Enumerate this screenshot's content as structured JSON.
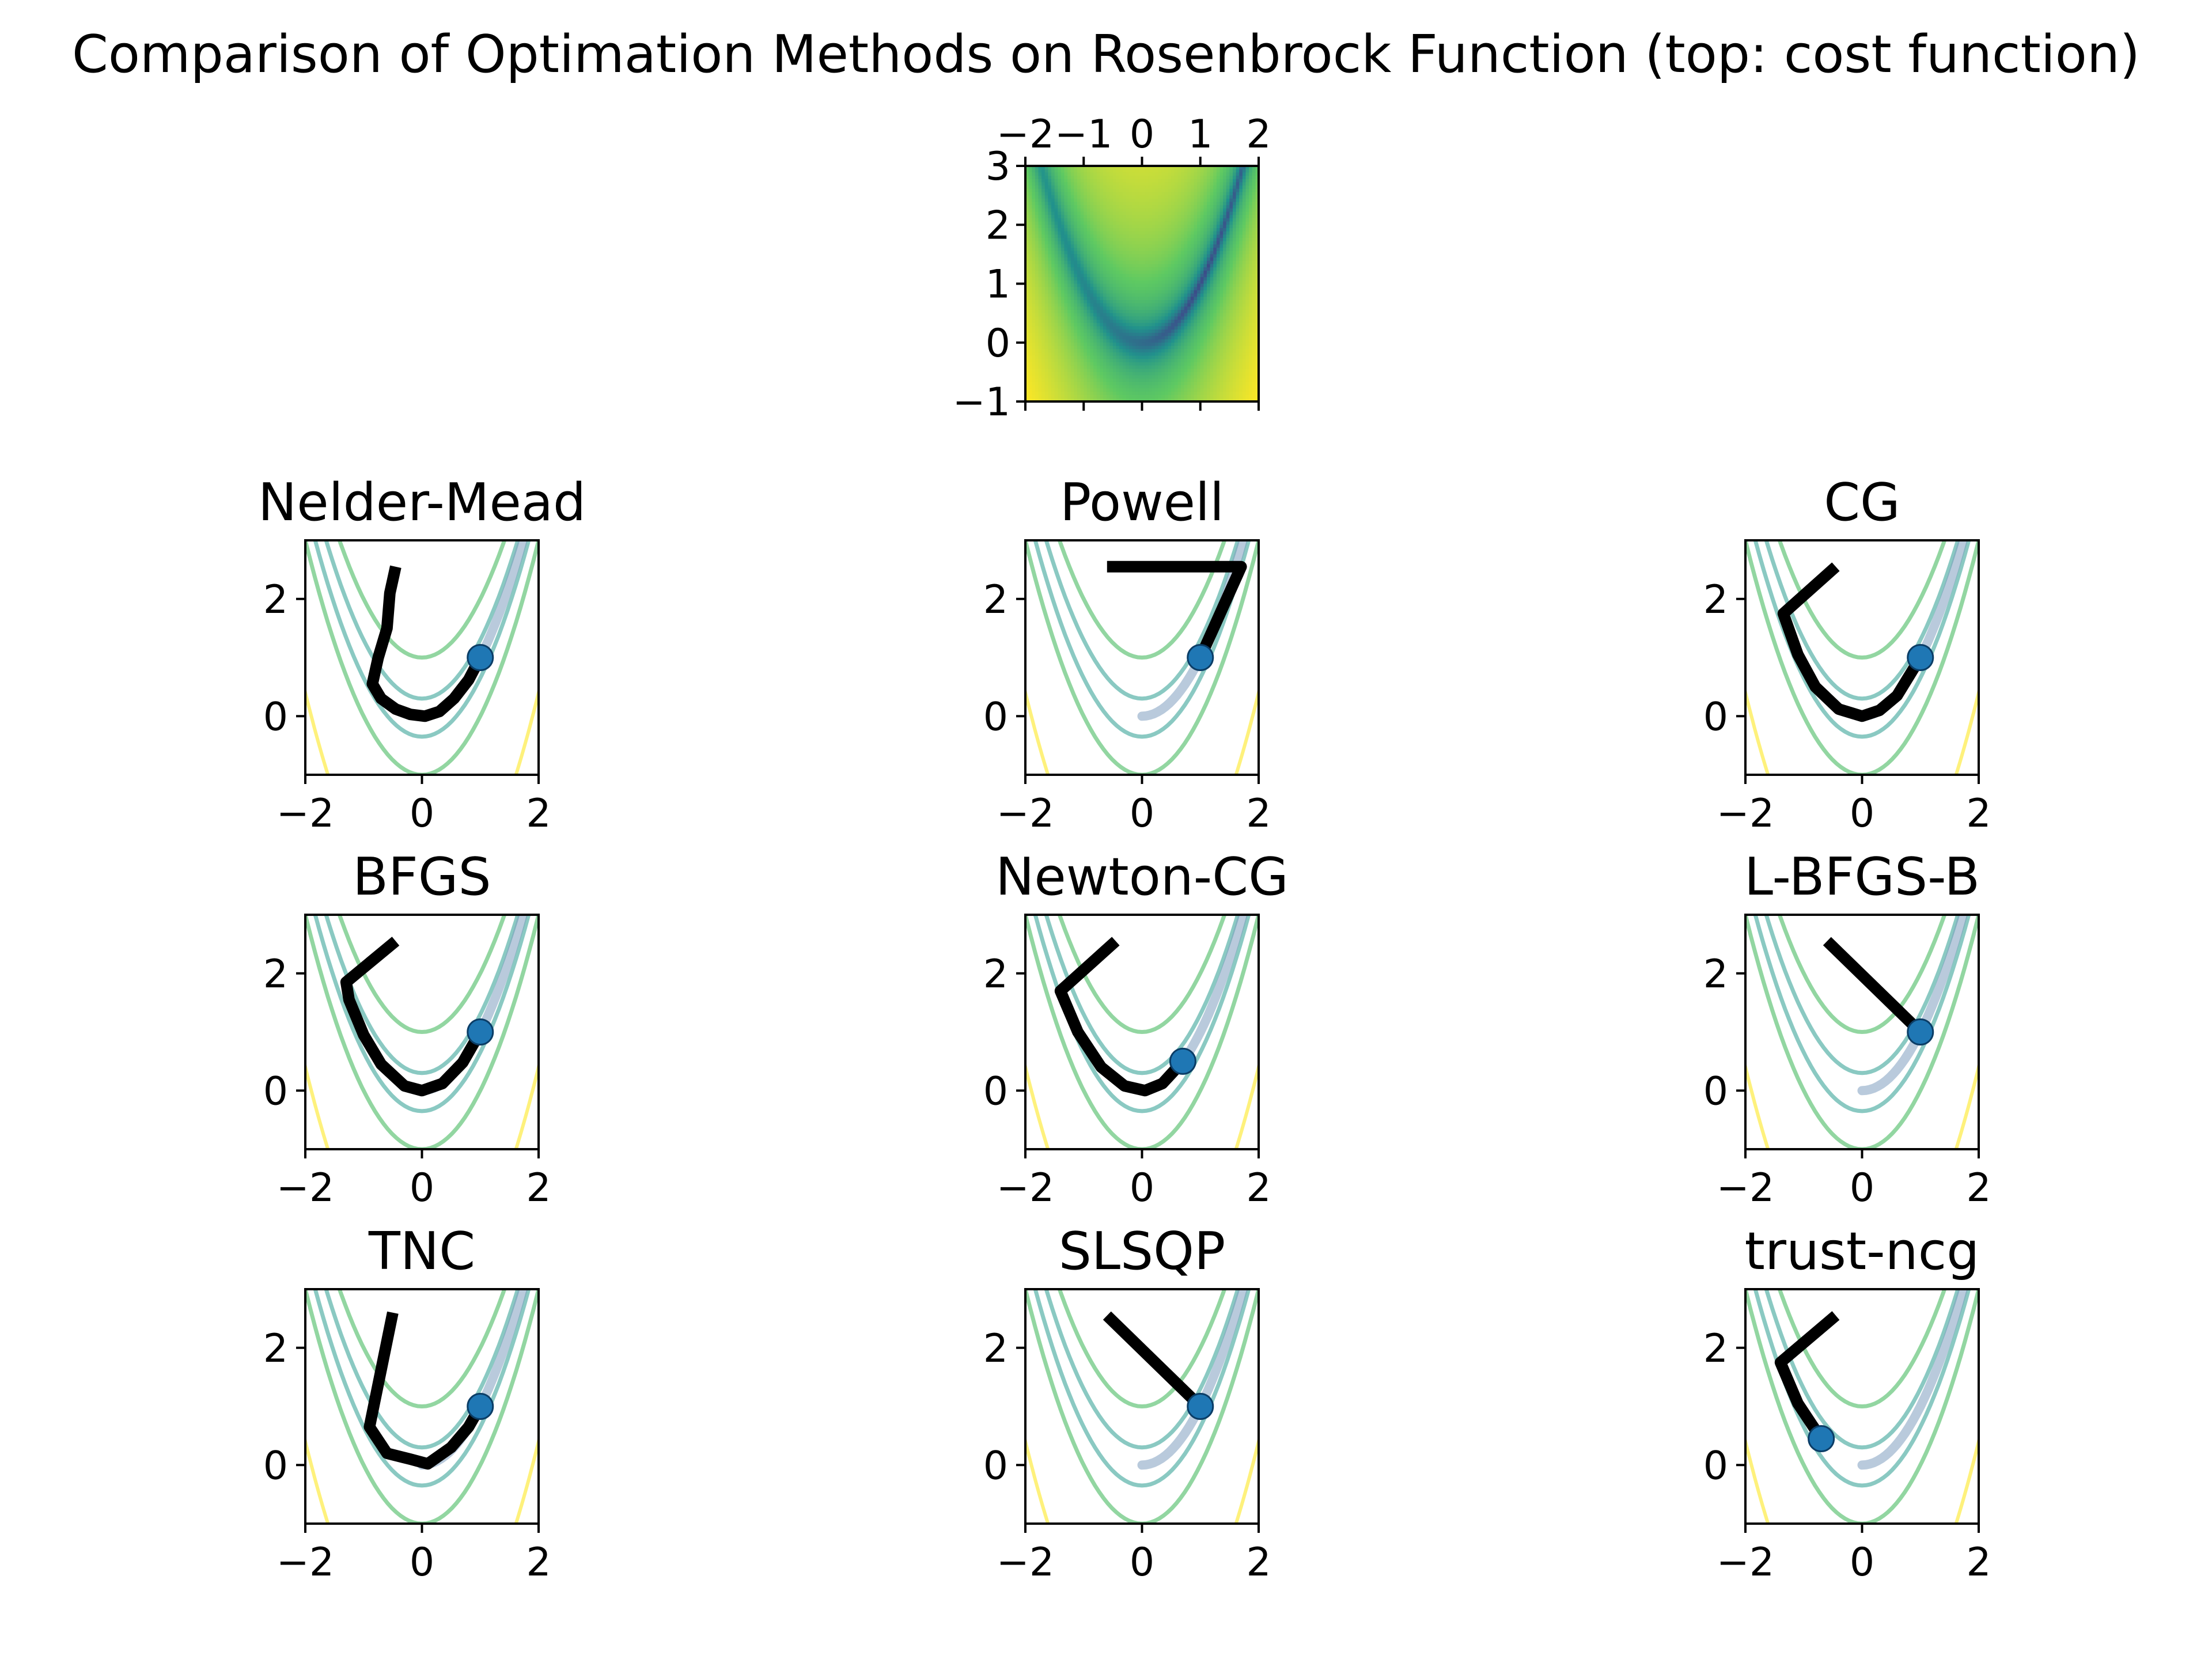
{
  "chart_data": {
    "type": "contour-grid",
    "title": "Comparison of Optimation Methods on Rosenbrock Function (top: cost function)",
    "function": "rosenbrock",
    "colors": {
      "path": "#000000",
      "endpoint": "#1f77b4",
      "valley_trace": "#7f9fbf",
      "contour_levels": [
        "#2a9d8f",
        "#7fcf90",
        "#fde725"
      ]
    },
    "overview": {
      "kind": "heatmap",
      "colormap": "viridis",
      "xlim": [
        -2,
        2
      ],
      "ylim": [
        -1,
        3
      ],
      "xticks": [
        "−2",
        "−1",
        "0",
        "1",
        "2"
      ],
      "yticks": [
        "3",
        "2",
        "1",
        "0",
        "−1"
      ]
    },
    "panels": [
      {
        "title": "Nelder-Mead",
        "xticks": [
          "−2",
          "0",
          "2"
        ],
        "yticks": [
          "2",
          "0"
        ],
        "xlim": [
          -2,
          2
        ],
        "ylim": [
          -1,
          3
        ],
        "path": [
          [
            -0.45,
            2.55
          ],
          [
            -0.55,
            2.1
          ],
          [
            -0.6,
            1.5
          ],
          [
            -0.75,
            1.0
          ],
          [
            -0.85,
            0.55
          ],
          [
            -0.7,
            0.3
          ],
          [
            -0.45,
            0.12
          ],
          [
            -0.2,
            0.03
          ],
          [
            0.05,
            0.0
          ],
          [
            0.3,
            0.08
          ],
          [
            0.55,
            0.3
          ],
          [
            0.8,
            0.62
          ],
          [
            1.0,
            1.0
          ]
        ],
        "endpoint": [
          1.0,
          1.0
        ]
      },
      {
        "title": "Powell",
        "xticks": [
          "−2",
          "0",
          "2"
        ],
        "yticks": [
          "2",
          "0"
        ],
        "xlim": [
          -2,
          2
        ],
        "ylim": [
          -1,
          3
        ],
        "path": [
          [
            -0.6,
            2.55
          ],
          [
            1.7,
            2.55
          ],
          [
            1.0,
            1.0
          ]
        ],
        "endpoint": [
          1.0,
          1.0
        ]
      },
      {
        "title": "CG",
        "xticks": [
          "−2",
          "0",
          "2"
        ],
        "yticks": [
          "2",
          "0"
        ],
        "xlim": [
          -2,
          2
        ],
        "ylim": [
          -1,
          3
        ],
        "path": [
          [
            -0.45,
            2.55
          ],
          [
            -1.35,
            1.75
          ],
          [
            -1.1,
            1.05
          ],
          [
            -0.8,
            0.5
          ],
          [
            -0.4,
            0.12
          ],
          [
            0.0,
            0.0
          ],
          [
            0.3,
            0.1
          ],
          [
            0.6,
            0.35
          ],
          [
            1.0,
            1.0
          ]
        ],
        "endpoint": [
          1.0,
          1.0
        ]
      },
      {
        "title": "BFGS",
        "xticks": [
          "−2",
          "0",
          "2"
        ],
        "yticks": [
          "2",
          "0"
        ],
        "xlim": [
          -2,
          2
        ],
        "ylim": [
          -1,
          3
        ],
        "path": [
          [
            -0.45,
            2.55
          ],
          [
            -1.3,
            1.85
          ],
          [
            -1.25,
            1.55
          ],
          [
            -1.0,
            0.95
          ],
          [
            -0.7,
            0.45
          ],
          [
            -0.3,
            0.08
          ],
          [
            0.0,
            0.0
          ],
          [
            0.35,
            0.12
          ],
          [
            0.7,
            0.48
          ],
          [
            1.0,
            1.0
          ]
        ],
        "endpoint": [
          1.0,
          1.0
        ]
      },
      {
        "title": "Newton-CG",
        "xticks": [
          "−2",
          "0",
          "2"
        ],
        "yticks": [
          "2",
          "0"
        ],
        "xlim": [
          -2,
          2
        ],
        "ylim": [
          -1,
          3
        ],
        "path": [
          [
            -0.45,
            2.55
          ],
          [
            -1.4,
            1.7
          ],
          [
            -1.1,
            1.0
          ],
          [
            -0.7,
            0.4
          ],
          [
            -0.3,
            0.08
          ],
          [
            0.05,
            0.0
          ],
          [
            0.35,
            0.12
          ],
          [
            0.7,
            0.5
          ]
        ],
        "endpoint": [
          0.7,
          0.5
        ]
      },
      {
        "title": "L-BFGS-B",
        "xticks": [
          "−2",
          "0",
          "2"
        ],
        "yticks": [
          "2",
          "0"
        ],
        "xlim": [
          -2,
          2
        ],
        "ylim": [
          -1,
          3
        ],
        "path": [
          [
            -0.6,
            2.55
          ],
          [
            1.0,
            1.0
          ]
        ],
        "endpoint": [
          1.0,
          1.0
        ]
      },
      {
        "title": "TNC",
        "xticks": [
          "−2",
          "0",
          "2"
        ],
        "yticks": [
          "2",
          "0"
        ],
        "xlim": [
          -2,
          2
        ],
        "ylim": [
          -1,
          3
        ],
        "path": [
          [
            -0.5,
            2.6
          ],
          [
            -0.9,
            0.65
          ],
          [
            -0.6,
            0.2
          ],
          [
            -0.2,
            0.1
          ],
          [
            0.1,
            0.02
          ],
          [
            0.5,
            0.3
          ],
          [
            0.8,
            0.65
          ],
          [
            1.0,
            1.0
          ]
        ],
        "endpoint": [
          1.0,
          1.0
        ]
      },
      {
        "title": "SLSQP",
        "xticks": [
          "−2",
          "0",
          "2"
        ],
        "yticks": [
          "2",
          "0"
        ],
        "xlim": [
          -2,
          2
        ],
        "ylim": [
          -1,
          3
        ],
        "path": [
          [
            -0.6,
            2.55
          ],
          [
            1.0,
            1.0
          ]
        ],
        "endpoint": [
          1.0,
          1.0
        ]
      },
      {
        "title": "trust-ncg",
        "xticks": [
          "−2",
          "0",
          "2"
        ],
        "yticks": [
          "2",
          "0"
        ],
        "xlim": [
          -2,
          2
        ],
        "ylim": [
          -1,
          3
        ],
        "path": [
          [
            -0.45,
            2.55
          ],
          [
            -1.4,
            1.75
          ],
          [
            -1.1,
            1.05
          ],
          [
            -0.7,
            0.45
          ]
        ],
        "endpoint": [
          -0.7,
          0.45
        ]
      }
    ]
  }
}
